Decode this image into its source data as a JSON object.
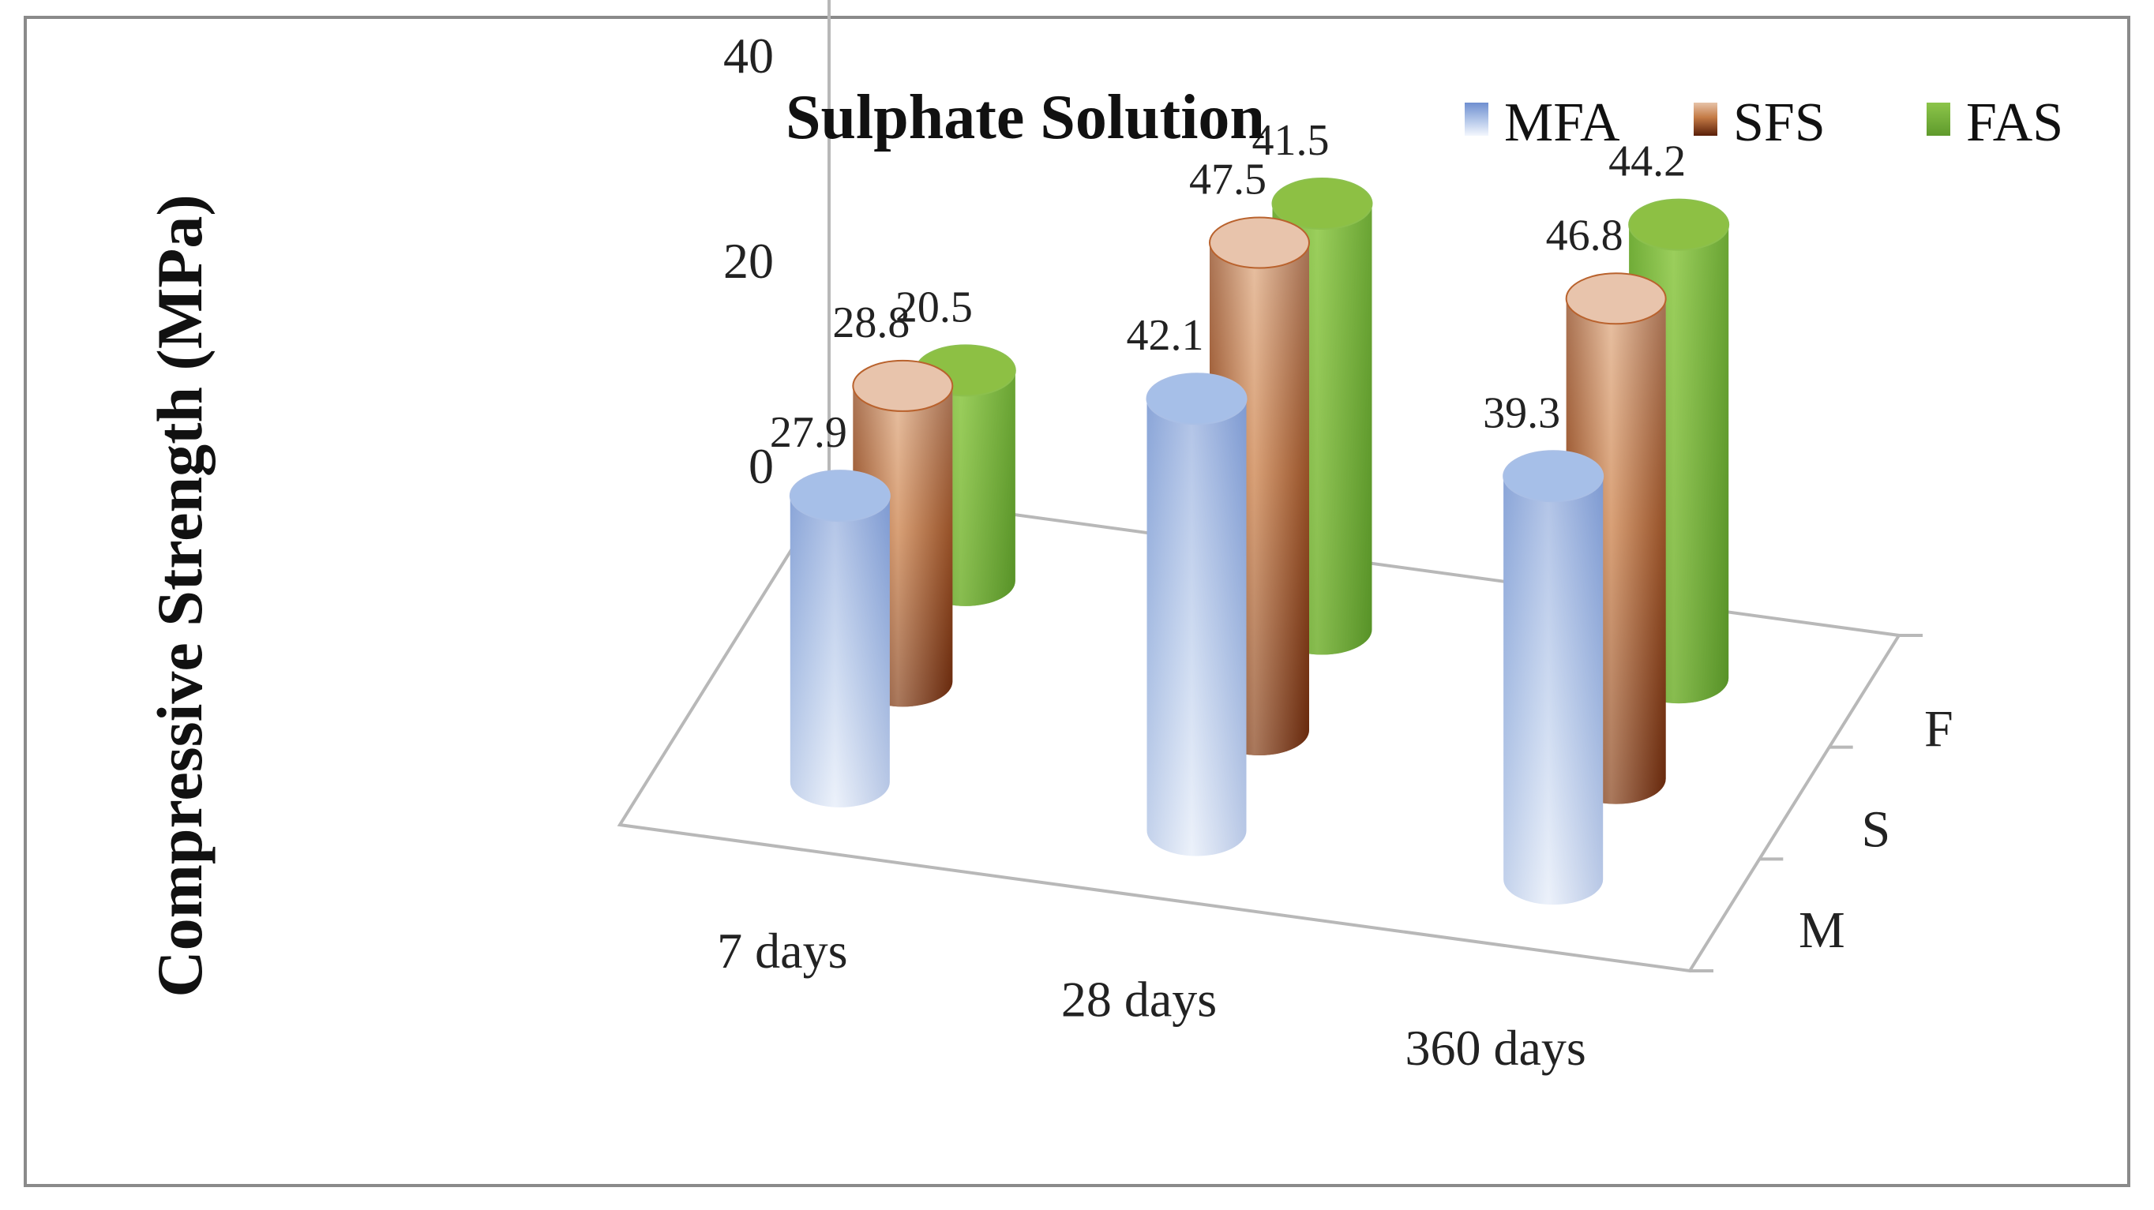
{
  "chart_data": {
    "type": "bar",
    "title": "Sulphate Solution",
    "ylabel": "Compressive Strength (MPa)",
    "ylim": [
      0,
      60
    ],
    "yticks": [
      "0",
      "20",
      "40",
      "60"
    ],
    "categories": [
      "7 days",
      "28 days",
      "360 days"
    ],
    "depth_labels": [
      "M",
      "S",
      "F"
    ],
    "legend_position": "top-right",
    "series": [
      {
        "name": "MFA",
        "values": [
          27.9,
          42.1,
          39.3
        ],
        "color": "#7f9fd6"
      },
      {
        "name": "SFS",
        "values": [
          28.8,
          47.5,
          46.8
        ],
        "color": "#b5551f"
      },
      {
        "name": "FAS",
        "values": [
          20.5,
          41.5,
          44.2
        ],
        "color": "#7fb33e"
      }
    ]
  }
}
